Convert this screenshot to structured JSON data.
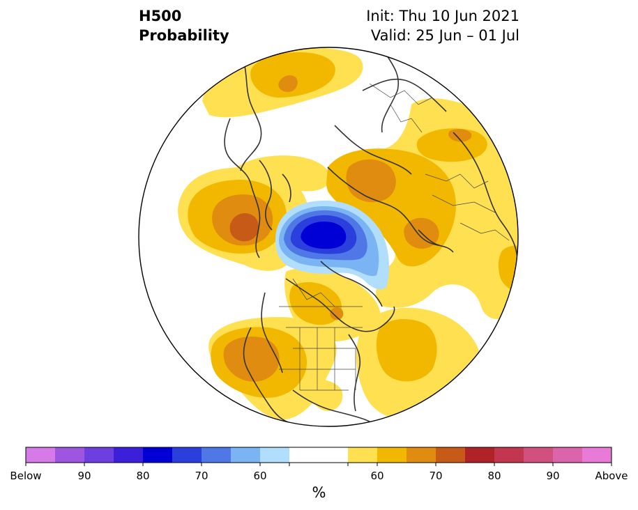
{
  "title": {
    "left_line1": "H500",
    "left_line2": "Probability",
    "right_line1": "Init: Thu 10 Jun 2021",
    "right_line2": "Valid: 25 Jun – 01 Jul"
  },
  "colorbar": {
    "unit": "%",
    "tick_labels": [
      "Below",
      "90",
      "80",
      "70",
      "60",
      "60",
      "70",
      "80",
      "90",
      "Above"
    ],
    "colors": [
      "#d67ae8",
      "#9e55e0",
      "#6e3fe0",
      "#3c1fd8",
      "#0000d6",
      "#2a3fdc",
      "#4f78e6",
      "#7ab4f2",
      "#b1defc",
      "#ffffff",
      "#ffffff",
      "#ffe050",
      "#f2b800",
      "#e08c10",
      "#c85a18",
      "#b02228",
      "#c23650",
      "#d2507e",
      "#dc64ac",
      "#e87ad8"
    ]
  },
  "colors": {
    "coastline": "#333333",
    "globe_edge": "#000000"
  }
}
